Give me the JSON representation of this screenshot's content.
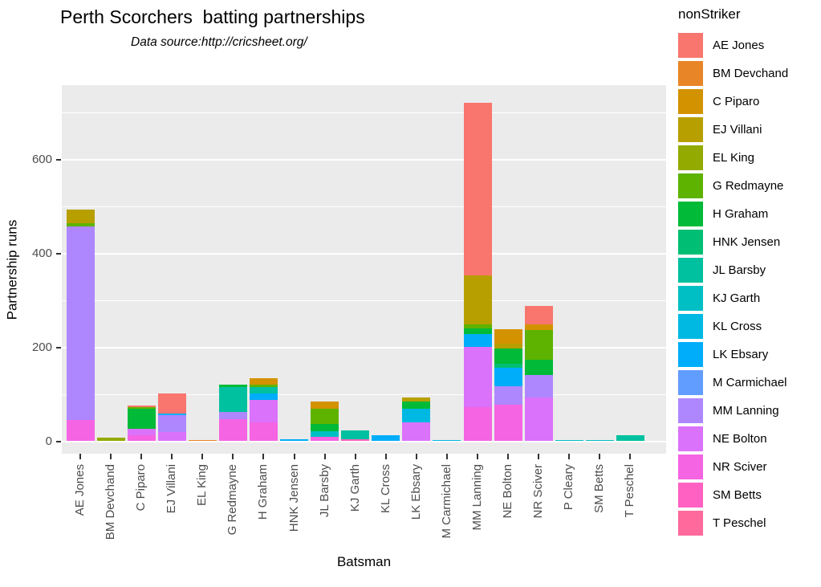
{
  "chart_data": {
    "type": "bar",
    "stacked": true,
    "title": "Perth Scorchers  batting partnerships",
    "subtitle": "Data source:http://cricsheet.org/",
    "xlabel": "Batsman",
    "ylabel": "Partnership runs",
    "ylim": [
      0,
      760
    ],
    "y_ticks": [
      0,
      200,
      400,
      600
    ],
    "y_minor_ticks": [
      100,
      300,
      500,
      700
    ],
    "grid": "on",
    "legend_position": "right",
    "legend": {
      "title": "nonStriker",
      "entries": [
        {
          "name": "AE Jones",
          "color": "#F8766D"
        },
        {
          "name": "BM Devchand",
          "color": "#E88526"
        },
        {
          "name": "C Piparo",
          "color": "#D39200"
        },
        {
          "name": "EJ Villani",
          "color": "#B79F00"
        },
        {
          "name": "EL King",
          "color": "#93AA00"
        },
        {
          "name": "G Redmayne",
          "color": "#5EB300"
        },
        {
          "name": "H Graham",
          "color": "#00BA38"
        },
        {
          "name": "HNK Jensen",
          "color": "#00BF74"
        },
        {
          "name": "JL Barsby",
          "color": "#00C19F"
        },
        {
          "name": "KJ Garth",
          "color": "#00BFC4"
        },
        {
          "name": "KL Cross",
          "color": "#00B9E3"
        },
        {
          "name": "LK Ebsary",
          "color": "#00ADFA"
        },
        {
          "name": "M Carmichael",
          "color": "#619CFF"
        },
        {
          "name": "MM Lanning",
          "color": "#AE87FF"
        },
        {
          "name": "NE Bolton",
          "color": "#DB72FB"
        },
        {
          "name": "NR Sciver",
          "color": "#F564E3"
        },
        {
          "name": "SM Betts",
          "color": "#FF61C3"
        },
        {
          "name": "T Peschel",
          "color": "#FF699C"
        }
      ]
    },
    "categories": [
      "AE Jones",
      "BM Devchand",
      "C Piparo",
      "EJ Villani",
      "EL King",
      "G Redmayne",
      "H Graham",
      "HNK Jensen",
      "JL Barsby",
      "KJ Garth",
      "KL Cross",
      "LK Ebsary",
      "M Carmichael",
      "MM Lanning",
      "NE Bolton",
      "NR Sciver",
      "P Cleary",
      "SM Betts",
      "T Peschel"
    ],
    "bars": [
      {
        "batsman": "AE Jones",
        "total": 494,
        "segments": [
          {
            "nonStriker": "NR Sciver",
            "runs": 46
          },
          {
            "nonStriker": "MM Lanning",
            "runs": 411
          },
          {
            "nonStriker": "G Redmayne",
            "runs": 7
          },
          {
            "nonStriker": "EJ Villani",
            "runs": 30
          }
        ]
      },
      {
        "batsman": "BM Devchand",
        "total": 7,
        "segments": [
          {
            "nonStriker": "EL King",
            "runs": 7
          }
        ]
      },
      {
        "batsman": "C Piparo",
        "total": 76,
        "segments": [
          {
            "nonStriker": "NR Sciver",
            "runs": 13
          },
          {
            "nonStriker": "NE Bolton",
            "runs": 13
          },
          {
            "nonStriker": "H Graham",
            "runs": 43
          },
          {
            "nonStriker": "G Redmayne",
            "runs": 3
          },
          {
            "nonStriker": "AE Jones",
            "runs": 4
          }
        ]
      },
      {
        "batsman": "EJ Villani",
        "total": 101,
        "segments": [
          {
            "nonStriker": "NE Bolton",
            "runs": 20
          },
          {
            "nonStriker": "MM Lanning",
            "runs": 35
          },
          {
            "nonStriker": "LK Ebsary",
            "runs": 4
          },
          {
            "nonStriker": "AE Jones",
            "runs": 42
          }
        ]
      },
      {
        "batsman": "EL King",
        "total": 3,
        "segments": [
          {
            "nonStriker": "BM Devchand",
            "runs": 3
          }
        ]
      },
      {
        "batsman": "G Redmayne",
        "total": 121,
        "segments": [
          {
            "nonStriker": "NR Sciver",
            "runs": 47
          },
          {
            "nonStriker": "MM Lanning",
            "runs": 16
          },
          {
            "nonStriker": "JL Barsby",
            "runs": 53
          },
          {
            "nonStriker": "H Graham",
            "runs": 5
          }
        ]
      },
      {
        "batsman": "H Graham",
        "total": 134,
        "segments": [
          {
            "nonStriker": "NR Sciver",
            "runs": 41
          },
          {
            "nonStriker": "NE Bolton",
            "runs": 47
          },
          {
            "nonStriker": "LK Ebsary",
            "runs": 14
          },
          {
            "nonStriker": "JL Barsby",
            "runs": 14
          },
          {
            "nonStriker": "G Redmayne",
            "runs": 4
          },
          {
            "nonStriker": "C Piparo",
            "runs": 14
          }
        ]
      },
      {
        "batsman": "HNK Jensen",
        "total": 5,
        "segments": [
          {
            "nonStriker": "LK Ebsary",
            "runs": 5
          }
        ]
      },
      {
        "batsman": "JL Barsby",
        "total": 84,
        "segments": [
          {
            "nonStriker": "NR Sciver",
            "runs": 10
          },
          {
            "nonStriker": "KJ Garth",
            "runs": 12
          },
          {
            "nonStriker": "H Graham",
            "runs": 15
          },
          {
            "nonStriker": "G Redmayne",
            "runs": 32
          },
          {
            "nonStriker": "C Piparo",
            "runs": 15
          }
        ]
      },
      {
        "batsman": "KJ Garth",
        "total": 23,
        "segments": [
          {
            "nonStriker": "SM Betts",
            "runs": 5
          },
          {
            "nonStriker": "JL Barsby",
            "runs": 18
          }
        ]
      },
      {
        "batsman": "KL Cross",
        "total": 12,
        "segments": [
          {
            "nonStriker": "LK Ebsary",
            "runs": 12
          }
        ]
      },
      {
        "batsman": "LK Ebsary",
        "total": 93,
        "segments": [
          {
            "nonStriker": "NE Bolton",
            "runs": 40
          },
          {
            "nonStriker": "KL Cross",
            "runs": 30
          },
          {
            "nonStriker": "H Graham",
            "runs": 15
          },
          {
            "nonStriker": "EJ Villani",
            "runs": 8
          }
        ]
      },
      {
        "batsman": "M Carmichael",
        "total": 2,
        "segments": [
          {
            "nonStriker": "KL Cross",
            "runs": 2
          }
        ]
      },
      {
        "batsman": "MM Lanning",
        "total": 720,
        "segments": [
          {
            "nonStriker": "NR Sciver",
            "runs": 73
          },
          {
            "nonStriker": "NE Bolton",
            "runs": 128
          },
          {
            "nonStriker": "LK Ebsary",
            "runs": 27
          },
          {
            "nonStriker": "H Graham",
            "runs": 13
          },
          {
            "nonStriker": "G Redmayne",
            "runs": 8
          },
          {
            "nonStriker": "EJ Villani",
            "runs": 104
          },
          {
            "nonStriker": "AE Jones",
            "runs": 367
          }
        ]
      },
      {
        "batsman": "NE Bolton",
        "total": 238,
        "segments": [
          {
            "nonStriker": "NR Sciver",
            "runs": 78
          },
          {
            "nonStriker": "MM Lanning",
            "runs": 39
          },
          {
            "nonStriker": "LK Ebsary",
            "runs": 39
          },
          {
            "nonStriker": "HNK Jensen",
            "runs": 9
          },
          {
            "nonStriker": "H Graham",
            "runs": 32
          },
          {
            "nonStriker": "EJ Villani",
            "runs": 10
          },
          {
            "nonStriker": "C Piparo",
            "runs": 31
          }
        ]
      },
      {
        "batsman": "NR Sciver",
        "total": 288,
        "segments": [
          {
            "nonStriker": "NE Bolton",
            "runs": 93
          },
          {
            "nonStriker": "MM Lanning",
            "runs": 48
          },
          {
            "nonStriker": "H Graham",
            "runs": 32
          },
          {
            "nonStriker": "G Redmayne",
            "runs": 63
          },
          {
            "nonStriker": "C Piparo",
            "runs": 12
          },
          {
            "nonStriker": "AE Jones",
            "runs": 40
          }
        ]
      },
      {
        "batsman": "P Cleary",
        "total": 2,
        "segments": [
          {
            "nonStriker": "KJ Garth",
            "runs": 2
          }
        ]
      },
      {
        "batsman": "SM Betts",
        "total": 2,
        "segments": [
          {
            "nonStriker": "KJ Garth",
            "runs": 2
          }
        ]
      },
      {
        "batsman": "T Peschel",
        "total": 13,
        "segments": [
          {
            "nonStriker": "JL Barsby",
            "runs": 13
          }
        ]
      }
    ],
    "panel_background": "#EBEBEB",
    "gridline_color": "#FFFFFF",
    "axis_text_color": "#4D4D4D"
  }
}
